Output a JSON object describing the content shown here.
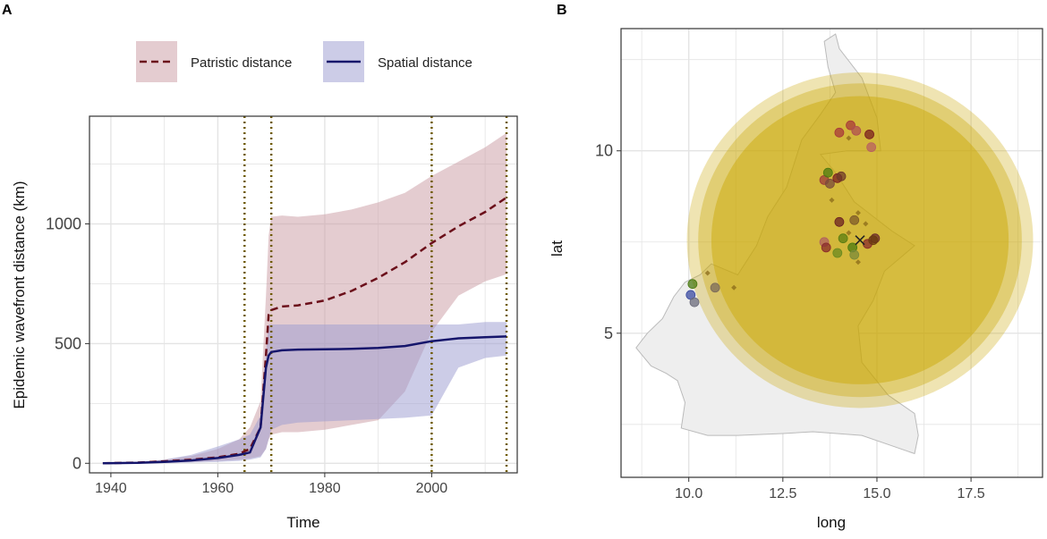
{
  "panels": {
    "a_label": "A",
    "b_label": "B"
  },
  "legend": {
    "patristic_label": "Patristic distance",
    "spatial_label": "Spatial distance"
  },
  "colors": {
    "patristic_line": "#6b0f1a",
    "patristic_band": "#c99aa1",
    "spatial_line": "#15156b",
    "spatial_band": "#9a9ad0",
    "event_line": "#6e5a00",
    "circle_fill": "#c9a700",
    "map_fill": "#eeeeee",
    "map_stroke": "#bbbbbb",
    "grid": "#e4e4e4",
    "panel_border": "#333333"
  },
  "chart_data": [
    {
      "type": "line",
      "title": "",
      "xlabel": "Time",
      "ylabel": "Epidemic wavefront distance (km)",
      "xlim": [
        1936,
        2016
      ],
      "ylim": [
        -40,
        1450
      ],
      "xticks": [
        1940,
        1960,
        1980,
        2000
      ],
      "yticks": [
        0,
        500,
        1000
      ],
      "vlines": [
        1965,
        1970,
        2000,
        2014
      ],
      "series": [
        {
          "name": "Patristic distance",
          "style": "dashed",
          "x": [
            1938.5,
            1945,
            1950,
            1955,
            1960,
            1964,
            1966,
            1968,
            1969,
            1969.5,
            1970,
            1972,
            1975,
            1980,
            1985,
            1990,
            1995,
            2000,
            2005,
            2010,
            2014
          ],
          "y": [
            0,
            3,
            8,
            15,
            25,
            40,
            60,
            150,
            450,
            620,
            640,
            655,
            660,
            680,
            720,
            775,
            840,
            920,
            990,
            1050,
            1110
          ],
          "lower": [
            0,
            0,
            2,
            5,
            10,
            15,
            20,
            30,
            60,
            100,
            120,
            130,
            130,
            140,
            160,
            180,
            300,
            550,
            700,
            760,
            790
          ],
          "upper": [
            1,
            5,
            15,
            30,
            60,
            100,
            150,
            260,
            700,
            950,
            1030,
            1035,
            1030,
            1040,
            1060,
            1090,
            1130,
            1200,
            1260,
            1320,
            1380
          ]
        },
        {
          "name": "Spatial distance",
          "style": "solid",
          "x": [
            1938.5,
            1945,
            1950,
            1955,
            1960,
            1964,
            1966,
            1968,
            1969,
            1969.5,
            1970,
            1972,
            1975,
            1980,
            1985,
            1990,
            1995,
            2000,
            2005,
            2010,
            2014
          ],
          "y": [
            0,
            2,
            6,
            12,
            22,
            35,
            45,
            150,
            400,
            450,
            465,
            472,
            475,
            476,
            478,
            482,
            490,
            510,
            522,
            527,
            530
          ],
          "lower": [
            0,
            0,
            1,
            3,
            6,
            10,
            15,
            25,
            60,
            100,
            140,
            160,
            170,
            175,
            180,
            185,
            190,
            200,
            400,
            440,
            450
          ],
          "upper": [
            1,
            4,
            15,
            35,
            70,
            100,
            120,
            200,
            460,
            580,
            580,
            580,
            580,
            580,
            580,
            580,
            580,
            580,
            580,
            590,
            590
          ]
        }
      ]
    },
    {
      "type": "scatter",
      "title": "",
      "xlabel": "long",
      "ylabel": "lat",
      "xlim": [
        8.2,
        19.4
      ],
      "ylim": [
        1.05,
        13.35
      ],
      "xticks": [
        10.0,
        12.5,
        15.0,
        17.5
      ],
      "yticks": [
        5,
        10
      ],
      "x_tick_labels": [
        "10.0",
        "12.5",
        "15.0",
        "17.5"
      ],
      "y_tick_labels": [
        "5",
        "10"
      ],
      "origin": {
        "long": 14.55,
        "lat": 7.55,
        "marker": "x"
      },
      "circles": [
        {
          "long": 14.55,
          "lat": 7.55,
          "radius": 4.6,
          "opacity": 0.3
        },
        {
          "long": 14.55,
          "lat": 7.55,
          "radius": 4.3,
          "opacity": 0.35
        },
        {
          "long": 14.55,
          "lat": 7.55,
          "radius": 3.95,
          "opacity": 0.45
        }
      ],
      "outline": [
        [
          8.6,
          4.6
        ],
        [
          9.0,
          4.1
        ],
        [
          9.4,
          3.9
        ],
        [
          9.7,
          3.7
        ],
        [
          9.9,
          3.1
        ],
        [
          9.8,
          2.4
        ],
        [
          10.5,
          2.2
        ],
        [
          11.3,
          2.2
        ],
        [
          12.5,
          2.25
        ],
        [
          13.3,
          2.3
        ],
        [
          14.6,
          2.2
        ],
        [
          15.3,
          1.95
        ],
        [
          16.0,
          1.7
        ],
        [
          16.1,
          2.2
        ],
        [
          16.0,
          2.8
        ],
        [
          15.3,
          3.3
        ],
        [
          14.6,
          4.2
        ],
        [
          14.5,
          5.2
        ],
        [
          14.9,
          5.9
        ],
        [
          15.2,
          6.7
        ],
        [
          16.0,
          7.4
        ],
        [
          15.4,
          7.8
        ],
        [
          14.4,
          8.6
        ],
        [
          13.9,
          9.4
        ],
        [
          13.5,
          9.9
        ],
        [
          14.2,
          10.0
        ],
        [
          15.1,
          10.0
        ],
        [
          15.0,
          10.9
        ],
        [
          14.6,
          12.0
        ],
        [
          14.0,
          12.8
        ],
        [
          13.9,
          13.2
        ],
        [
          13.6,
          13.0
        ],
        [
          13.7,
          12.3
        ],
        [
          13.9,
          11.6
        ],
        [
          13.5,
          11.0
        ],
        [
          13.0,
          10.3
        ],
        [
          12.6,
          9.0
        ],
        [
          12.1,
          8.2
        ],
        [
          11.8,
          7.4
        ],
        [
          11.3,
          6.6
        ],
        [
          10.6,
          6.9
        ],
        [
          10.3,
          6.6
        ],
        [
          9.9,
          6.4
        ],
        [
          9.6,
          6.0
        ],
        [
          9.3,
          5.4
        ],
        [
          8.9,
          5.0
        ],
        [
          8.6,
          4.6
        ]
      ],
      "points": [
        {
          "long": 14.0,
          "lat": 10.5,
          "color": "#a83a3a"
        },
        {
          "long": 14.3,
          "lat": 10.7,
          "color": "#a83a3a"
        },
        {
          "long": 14.45,
          "lat": 10.55,
          "color": "#b05050"
        },
        {
          "long": 14.8,
          "lat": 10.45,
          "color": "#7a1f1f"
        },
        {
          "long": 14.85,
          "lat": 10.1,
          "color": "#b86060"
        },
        {
          "long": 13.6,
          "lat": 9.2,
          "color": "#9c3b3b"
        },
        {
          "long": 13.7,
          "lat": 9.4,
          "color": "#4c7a10"
        },
        {
          "long": 13.75,
          "lat": 9.1,
          "color": "#7a4b3b"
        },
        {
          "long": 13.95,
          "lat": 9.25,
          "color": "#7a2020"
        },
        {
          "long": 14.05,
          "lat": 9.3,
          "color": "#6e3a2a"
        },
        {
          "long": 14.0,
          "lat": 8.05,
          "color": "#6b2222"
        },
        {
          "long": 14.4,
          "lat": 8.1,
          "color": "#7d5a2a"
        },
        {
          "long": 13.6,
          "lat": 7.5,
          "color": "#b06060"
        },
        {
          "long": 13.65,
          "lat": 7.35,
          "color": "#8a2b2b"
        },
        {
          "long": 13.95,
          "lat": 7.2,
          "color": "#6a8a20"
        },
        {
          "long": 14.1,
          "lat": 7.6,
          "color": "#5a7d12"
        },
        {
          "long": 14.35,
          "lat": 7.35,
          "color": "#4a7a10"
        },
        {
          "long": 14.4,
          "lat": 7.15,
          "color": "#7a8a3a"
        },
        {
          "long": 14.75,
          "lat": 7.45,
          "color": "#8a2b2b"
        },
        {
          "long": 14.95,
          "lat": 7.6,
          "color": "#6b2b2b"
        },
        {
          "long": 14.9,
          "lat": 7.55,
          "color": "#6a3a10"
        },
        {
          "long": 10.7,
          "lat": 6.25,
          "color": "#7a6a5a"
        },
        {
          "long": 10.1,
          "lat": 6.35,
          "color": "#4a7a10"
        },
        {
          "long": 10.05,
          "lat": 6.05,
          "color": "#3a4aa0"
        },
        {
          "long": 10.15,
          "lat": 5.85,
          "color": "#6a6a7a"
        }
      ],
      "diamonds": [
        {
          "long": 14.5,
          "lat": 8.3
        },
        {
          "long": 14.7,
          "lat": 8.0
        },
        {
          "long": 14.25,
          "lat": 7.75
        },
        {
          "long": 14.5,
          "lat": 6.95
        },
        {
          "long": 11.2,
          "lat": 6.25
        },
        {
          "long": 10.5,
          "lat": 6.65
        },
        {
          "long": 13.8,
          "lat": 8.65
        },
        {
          "long": 14.25,
          "lat": 10.35
        }
      ]
    }
  ]
}
